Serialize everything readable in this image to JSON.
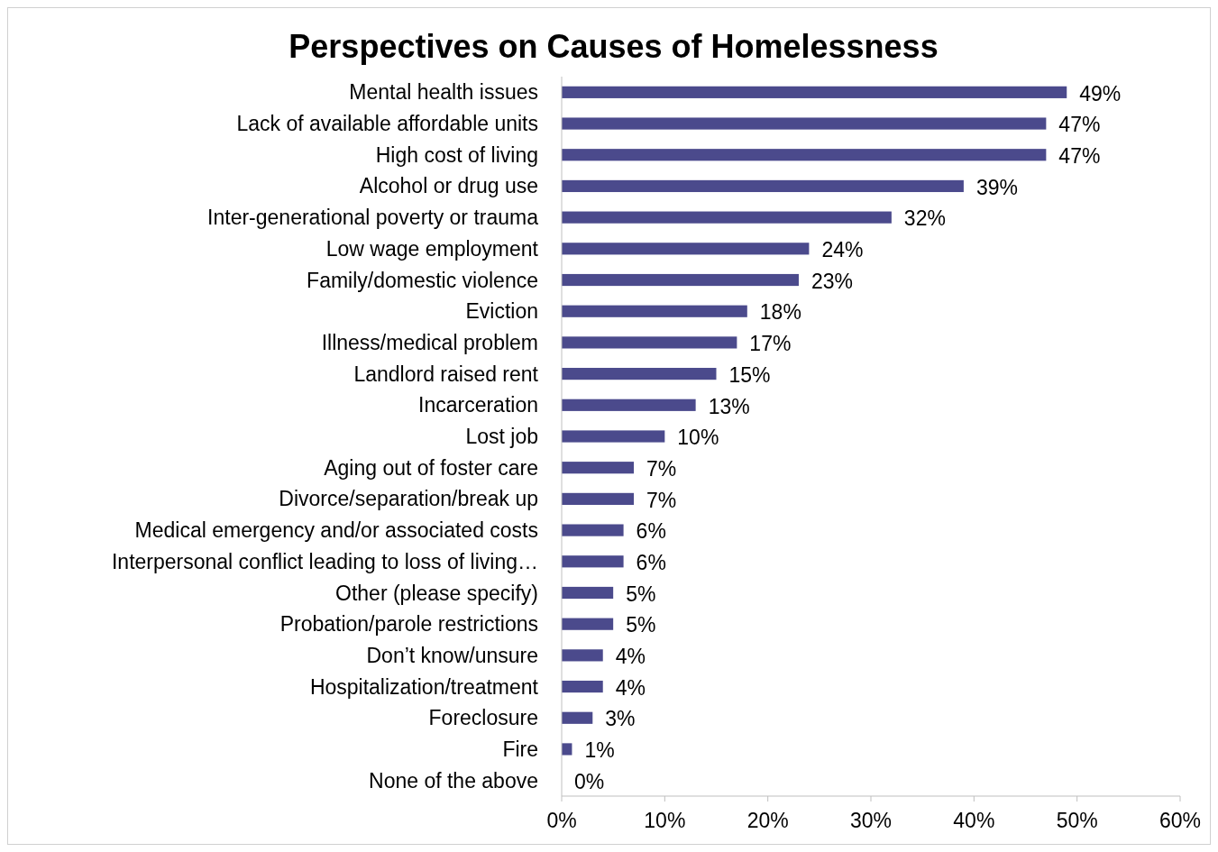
{
  "chart_data": {
    "type": "bar",
    "orientation": "horizontal",
    "title": "Perspectives on Causes of Homelessness",
    "categories": [
      "Mental health issues",
      "Lack of available affordable units",
      "High cost of living",
      "Alcohol or drug use",
      "Inter-generational poverty or trauma",
      "Low wage employment",
      "Family/domestic violence",
      "Eviction",
      "Illness/medical problem",
      "Landlord raised rent",
      "Incarceration",
      "Lost job",
      "Aging out of foster care",
      "Divorce/separation/break up",
      "Medical emergency and/or associated costs",
      "Interpersonal conflict leading to loss of living…",
      "Other (please specify)",
      "Probation/parole restrictions",
      "Don’t know/unsure",
      "Hospitalization/treatment",
      "Foreclosure",
      "Fire",
      "None of the above"
    ],
    "values": [
      49,
      47,
      47,
      39,
      32,
      24,
      23,
      18,
      17,
      15,
      13,
      10,
      7,
      7,
      6,
      6,
      5,
      5,
      4,
      4,
      3,
      1,
      0
    ],
    "value_labels": [
      "49%",
      "47%",
      "47%",
      "39%",
      "32%",
      "24%",
      "23%",
      "18%",
      "17%",
      "15%",
      "13%",
      "10%",
      "7%",
      "7%",
      "6%",
      "6%",
      "5%",
      "5%",
      "4%",
      "4%",
      "3%",
      "1%",
      "0%"
    ],
    "color": "#4b4a8c",
    "xlim": [
      0,
      60
    ],
    "xticks": [
      {
        "value": 0,
        "label": "0%"
      },
      {
        "value": 10,
        "label": "10%"
      },
      {
        "value": 20,
        "label": "20%"
      },
      {
        "value": 30,
        "label": "30%"
      },
      {
        "value": 40,
        "label": "40%"
      },
      {
        "value": 50,
        "label": "50%"
      },
      {
        "value": 60,
        "label": "60%"
      }
    ],
    "grid": false
  }
}
